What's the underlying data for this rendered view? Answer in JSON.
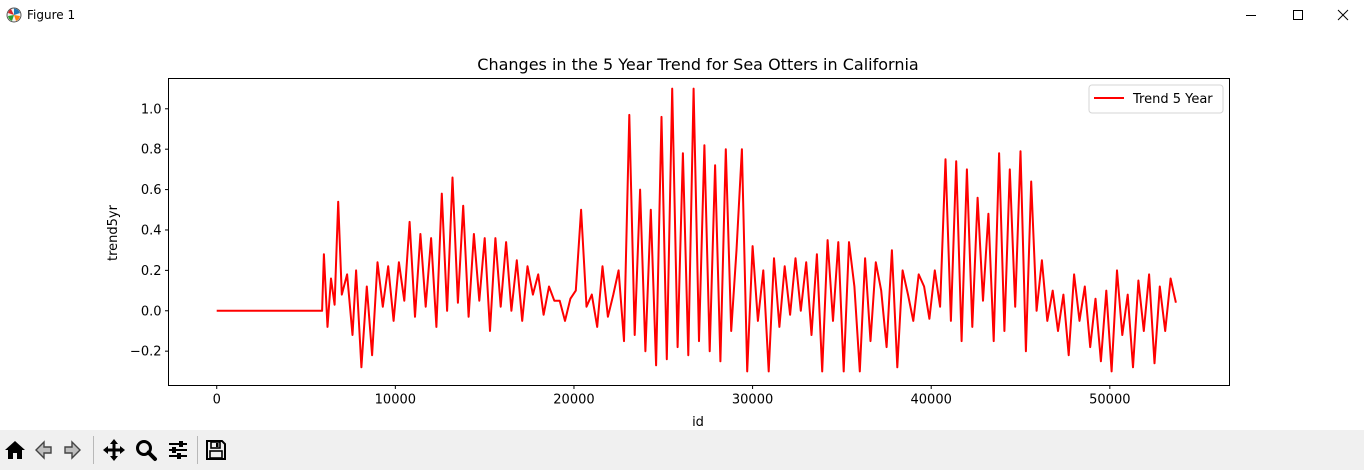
{
  "window": {
    "title": "Figure 1",
    "icon": "matplotlib-icon",
    "controls": [
      "minimize-icon",
      "maximize-icon",
      "close-icon"
    ]
  },
  "toolbar": {
    "buttons": [
      "home-icon",
      "back-icon",
      "forward-icon",
      "pan-icon",
      "zoom-icon",
      "configure-subplots-icon",
      "save-icon"
    ]
  },
  "colors": {
    "line": "#ff0000",
    "axes": "#000000",
    "background": "#ffffff",
    "toolbar": "#f0f0f0"
  },
  "chart_data": {
    "type": "line",
    "title": "Changes in the 5 Year Trend for Sea Otters in California",
    "xlabel": "id",
    "ylabel": "trend5yr",
    "xlim": [
      -2700,
      56700
    ],
    "ylim": [
      -0.37,
      1.15
    ],
    "xticks": [
      0,
      10000,
      20000,
      30000,
      40000,
      50000
    ],
    "xtick_labels": [
      "0",
      "10000",
      "20000",
      "30000",
      "40000",
      "50000"
    ],
    "yticks": [
      -0.2,
      0.0,
      0.2,
      0.4,
      0.6,
      0.8,
      1.0
    ],
    "ytick_labels": [
      "−0.2",
      "0.0",
      "0.2",
      "0.4",
      "0.6",
      "0.8",
      "1.0"
    ],
    "grid": false,
    "legend": {
      "position": "upper-right",
      "entries": [
        "Trend 5 Year"
      ]
    },
    "series": [
      {
        "name": "Trend 5 Year",
        "color": "#ff0000",
        "x": [
          0,
          5900,
          6000,
          6200,
          6400,
          6600,
          6800,
          7000,
          7300,
          7600,
          7800,
          8100,
          8400,
          8700,
          9000,
          9300,
          9600,
          9900,
          10200,
          10500,
          10800,
          11100,
          11400,
          11700,
          12000,
          12300,
          12600,
          12900,
          13200,
          13500,
          13800,
          14100,
          14400,
          14700,
          15000,
          15300,
          15600,
          15900,
          16200,
          16500,
          16800,
          17100,
          17400,
          17700,
          18000,
          18300,
          18600,
          18900,
          19200,
          19500,
          19800,
          20100,
          20400,
          20700,
          21000,
          21300,
          21600,
          21900,
          22200,
          22500,
          22800,
          23100,
          23400,
          23700,
          24000,
          24300,
          24600,
          24900,
          25200,
          25500,
          25800,
          26100,
          26400,
          26700,
          27000,
          27300,
          27600,
          27900,
          28200,
          28500,
          28800,
          29100,
          29400,
          29700,
          30000,
          30300,
          30600,
          30900,
          31200,
          31500,
          31800,
          32100,
          32400,
          32700,
          33000,
          33300,
          33600,
          33900,
          34200,
          34500,
          34800,
          35100,
          35400,
          35700,
          36000,
          36300,
          36600,
          36900,
          37200,
          37500,
          37800,
          38100,
          38400,
          38700,
          39000,
          39300,
          39600,
          39900,
          40200,
          40500,
          40800,
          41100,
          41400,
          41700,
          42000,
          42300,
          42600,
          42900,
          43200,
          43500,
          43800,
          44100,
          44400,
          44700,
          45000,
          45300,
          45600,
          45900,
          46200,
          46500,
          46800,
          47100,
          47400,
          47700,
          48000,
          48300,
          48600,
          48900,
          49200,
          49500,
          49800,
          50100,
          50400,
          50700,
          51000,
          51300,
          51600,
          51900,
          52200,
          52500,
          52800,
          53100,
          53400,
          53700
        ],
        "y": [
          0.0,
          0.0,
          0.28,
          -0.08,
          0.16,
          0.03,
          0.54,
          0.08,
          0.18,
          -0.12,
          0.2,
          -0.28,
          0.12,
          -0.22,
          0.24,
          0.02,
          0.22,
          -0.05,
          0.24,
          0.05,
          0.44,
          -0.03,
          0.38,
          0.02,
          0.36,
          -0.08,
          0.58,
          0.0,
          0.66,
          0.04,
          0.52,
          -0.03,
          0.38,
          0.05,
          0.36,
          -0.1,
          0.36,
          0.02,
          0.34,
          0.0,
          0.25,
          -0.05,
          0.22,
          0.08,
          0.18,
          -0.02,
          0.12,
          0.05,
          0.05,
          -0.05,
          0.06,
          0.1,
          0.5,
          0.02,
          0.08,
          -0.08,
          0.22,
          -0.03,
          0.08,
          0.2,
          -0.15,
          0.97,
          -0.12,
          0.6,
          -0.2,
          0.5,
          -0.27,
          0.96,
          -0.24,
          1.1,
          -0.18,
          0.78,
          -0.22,
          1.1,
          -0.15,
          0.82,
          -0.2,
          0.72,
          -0.25,
          0.8,
          -0.1,
          0.3,
          0.8,
          -0.3,
          0.32,
          -0.05,
          0.2,
          -0.3,
          0.26,
          -0.08,
          0.22,
          -0.02,
          0.26,
          0.0,
          0.24,
          -0.12,
          0.28,
          -0.3,
          0.35,
          -0.05,
          0.34,
          -0.3,
          0.34,
          0.12,
          -0.3,
          0.26,
          -0.15,
          0.24,
          0.1,
          -0.18,
          0.3,
          -0.28,
          0.2,
          0.08,
          -0.05,
          0.18,
          0.12,
          -0.04,
          0.2,
          0.02,
          0.75,
          -0.05,
          0.74,
          -0.15,
          0.7,
          -0.08,
          0.56,
          0.05,
          0.48,
          -0.15,
          0.78,
          -0.1,
          0.7,
          0.02,
          0.79,
          -0.2,
          0.64,
          0.0,
          0.25,
          -0.05,
          0.1,
          -0.1,
          0.08,
          -0.22,
          0.18,
          -0.05,
          0.12,
          -0.18,
          0.06,
          -0.25,
          0.1,
          -0.3,
          0.2,
          -0.12,
          0.08,
          -0.28,
          0.15,
          -0.1,
          0.18,
          -0.26,
          0.12,
          -0.1,
          0.16,
          0.04
        ]
      }
    ]
  }
}
